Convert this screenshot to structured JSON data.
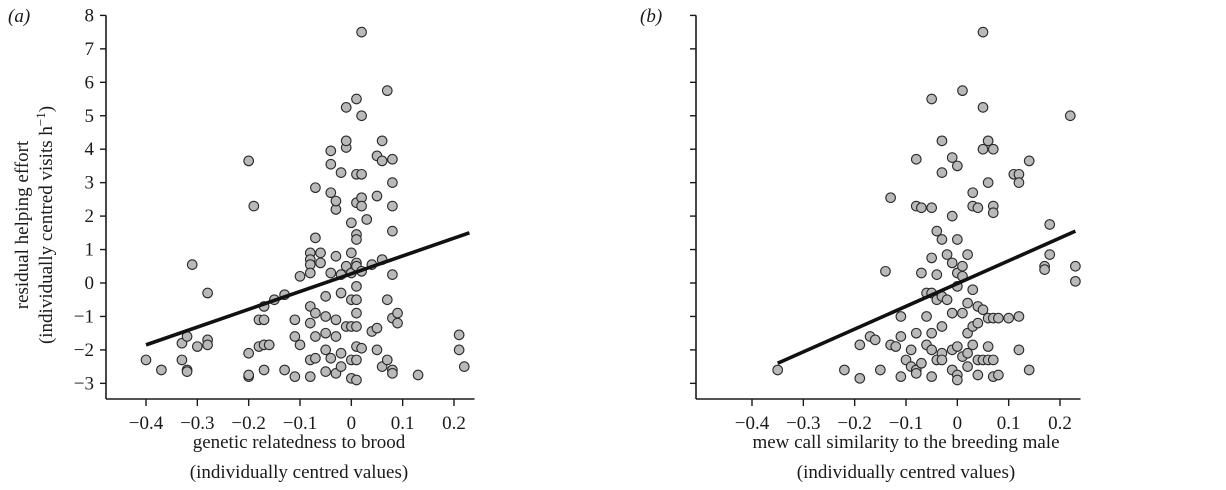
{
  "chart_data": [
    {
      "type": "scatter",
      "panel_label": "(a)",
      "xlabel": "genetic relatedness to brood",
      "xlabel2": "(individually centred values)",
      "ylabel": "residual helping effort",
      "ylabel2": "(individually centred visits h",
      "ylabel2_sup": "−1",
      "ylabel2_end": ")",
      "xlim": [
        -0.45,
        0.24
      ],
      "ylim": [
        -3.4,
        8.0
      ],
      "xticks": [
        -0.4,
        -0.3,
        -0.2,
        -0.1,
        0,
        0.1,
        0.2
      ],
      "xtick_labels": [
        "−0.4",
        "−0.3",
        "−0.2",
        "−0.1",
        "0",
        "0.1",
        "0.2"
      ],
      "yticks": [
        -3,
        -2,
        -1,
        0,
        1,
        2,
        3,
        4,
        5,
        6,
        7,
        8
      ],
      "ytick_labels": [
        "−3",
        "−2",
        "−1",
        "0",
        "1",
        "2",
        "3",
        "4",
        "5",
        "6",
        "7",
        "8"
      ],
      "fit_line": [
        [
          -0.4,
          -1.85
        ],
        [
          0.23,
          1.5
        ]
      ],
      "points": [
        [
          -0.4,
          -2.3
        ],
        [
          -0.37,
          -2.6
        ],
        [
          -0.33,
          -2.3
        ],
        [
          -0.33,
          -1.8
        ],
        [
          -0.32,
          -1.6
        ],
        [
          -0.32,
          -2.6
        ],
        [
          -0.32,
          -2.65
        ],
        [
          -0.31,
          0.55
        ],
        [
          -0.3,
          -1.9
        ],
        [
          -0.28,
          -1.7
        ],
        [
          -0.28,
          -1.85
        ],
        [
          -0.28,
          -0.3
        ],
        [
          -0.2,
          3.65
        ],
        [
          -0.2,
          -2.8
        ],
        [
          -0.2,
          -2.75
        ],
        [
          -0.2,
          -2.1
        ],
        [
          -0.19,
          2.3
        ],
        [
          -0.18,
          -1.1
        ],
        [
          -0.18,
          -1.9
        ],
        [
          -0.17,
          -2.6
        ],
        [
          -0.17,
          -1.85
        ],
        [
          -0.17,
          -1.1
        ],
        [
          -0.17,
          -0.7
        ],
        [
          -0.16,
          -1.85
        ],
        [
          -0.15,
          -0.5
        ],
        [
          -0.13,
          -0.35
        ],
        [
          -0.13,
          -2.6
        ],
        [
          -0.11,
          -2.8
        ],
        [
          -0.11,
          -1.6
        ],
        [
          -0.11,
          -1.1
        ],
        [
          -0.1,
          0.2
        ],
        [
          -0.1,
          -1.85
        ],
        [
          -0.08,
          -2.3
        ],
        [
          -0.08,
          -2.8
        ],
        [
          -0.08,
          0.9
        ],
        [
          -0.08,
          0.7
        ],
        [
          -0.08,
          0.55
        ],
        [
          -0.08,
          0.3
        ],
        [
          -0.08,
          -0.7
        ],
        [
          -0.08,
          -1.2
        ],
        [
          -0.07,
          1.35
        ],
        [
          -0.07,
          2.85
        ],
        [
          -0.07,
          -2.25
        ],
        [
          -0.07,
          -1.6
        ],
        [
          -0.07,
          -0.9
        ],
        [
          -0.06,
          0.9
        ],
        [
          -0.06,
          0.6
        ],
        [
          -0.05,
          -1.0
        ],
        [
          -0.05,
          -1.5
        ],
        [
          -0.05,
          -2.0
        ],
        [
          -0.05,
          -2.65
        ],
        [
          -0.05,
          -0.4
        ],
        [
          -0.04,
          0.3
        ],
        [
          -0.04,
          2.7
        ],
        [
          -0.04,
          3.55
        ],
        [
          -0.04,
          3.95
        ],
        [
          -0.04,
          -2.25
        ],
        [
          -0.03,
          0.8
        ],
        [
          -0.03,
          -1.1
        ],
        [
          -0.03,
          -1.6
        ],
        [
          -0.03,
          -2.7
        ],
        [
          -0.03,
          2.2
        ],
        [
          -0.03,
          2.45
        ],
        [
          -0.02,
          0.25
        ],
        [
          -0.02,
          -0.3
        ],
        [
          -0.02,
          -2.1
        ],
        [
          -0.02,
          -2.5
        ],
        [
          -0.02,
          3.3
        ],
        [
          -0.01,
          4.05
        ],
        [
          -0.01,
          4.25
        ],
        [
          -0.01,
          5.25
        ],
        [
          -0.01,
          -1.3
        ],
        [
          -0.01,
          0.5
        ],
        [
          0,
          -2.85
        ],
        [
          0,
          -2.3
        ],
        [
          0,
          0.3
        ],
        [
          0,
          -1.3
        ],
        [
          0,
          1.8
        ],
        [
          0,
          0.9
        ],
        [
          0,
          -0.5
        ],
        [
          0.01,
          5.5
        ],
        [
          0.01,
          3.25
        ],
        [
          0.01,
          2.4
        ],
        [
          0.01,
          1.45
        ],
        [
          0.01,
          1.3
        ],
        [
          0.01,
          0.6
        ],
        [
          0.01,
          0.5
        ],
        [
          0.01,
          -0.1
        ],
        [
          0.01,
          -0.5
        ],
        [
          0.01,
          -0.9
        ],
        [
          0.01,
          -1.3
        ],
        [
          0.01,
          -1.9
        ],
        [
          0.01,
          -2.3
        ],
        [
          0.01,
          -2.9
        ],
        [
          0.02,
          7.5
        ],
        [
          0.02,
          5.0
        ],
        [
          0.02,
          3.25
        ],
        [
          0.02,
          2.55
        ],
        [
          0.02,
          2.3
        ],
        [
          0.02,
          0.35
        ],
        [
          0.02,
          -1.95
        ],
        [
          0.03,
          1.9
        ],
        [
          0.04,
          0.55
        ],
        [
          0.04,
          -1.45
        ],
        [
          0.05,
          3.8
        ],
        [
          0.05,
          2.6
        ],
        [
          0.05,
          -1.35
        ],
        [
          0.05,
          -2.0
        ],
        [
          0.06,
          4.25
        ],
        [
          0.06,
          3.65
        ],
        [
          0.06,
          0.7
        ],
        [
          0.06,
          -2.5
        ],
        [
          0.07,
          5.75
        ],
        [
          0.07,
          -0.5
        ],
        [
          0.07,
          -2.3
        ],
        [
          0.08,
          3.7
        ],
        [
          0.08,
          3.0
        ],
        [
          0.08,
          2.3
        ],
        [
          0.08,
          1.55
        ],
        [
          0.08,
          0.25
        ],
        [
          0.08,
          -1.05
        ],
        [
          0.08,
          -2.6
        ],
        [
          0.08,
          -2.7
        ],
        [
          0.09,
          -0.9
        ],
        [
          0.09,
          -1.2
        ],
        [
          0.13,
          -2.75
        ],
        [
          0.21,
          -1.55
        ],
        [
          0.21,
          -2.0
        ],
        [
          0.22,
          -2.5
        ]
      ]
    },
    {
      "type": "scatter",
      "panel_label": "(b)",
      "xlabel": "mew call similarity to the breeding male",
      "xlabel2": "(individually centred values)",
      "xlim": [
        -0.45,
        0.24
      ],
      "ylim": [
        -3.4,
        8.0
      ],
      "xticks": [
        -0.4,
        -0.3,
        -0.2,
        -0.1,
        0,
        0.1,
        0.2
      ],
      "xtick_labels": [
        "−0.4",
        "−0.3",
        "−0.2",
        "−0.1",
        "0",
        "0.1",
        "0.2"
      ],
      "yticks": [
        -3,
        -2,
        -1,
        0,
        1,
        2,
        3,
        4,
        5,
        6,
        7,
        8
      ],
      "fit_line": [
        [
          -0.35,
          -2.4
        ],
        [
          0.23,
          1.55
        ]
      ],
      "points": [
        [
          -0.35,
          -2.6
        ],
        [
          -0.22,
          -2.6
        ],
        [
          -0.19,
          -2.85
        ],
        [
          -0.19,
          -1.85
        ],
        [
          -0.17,
          -1.6
        ],
        [
          -0.16,
          -1.7
        ],
        [
          -0.15,
          -2.6
        ],
        [
          -0.14,
          0.35
        ],
        [
          -0.13,
          2.55
        ],
        [
          -0.13,
          -1.85
        ],
        [
          -0.12,
          -1.9
        ],
        [
          -0.11,
          -1.6
        ],
        [
          -0.11,
          -1.0
        ],
        [
          -0.11,
          -2.8
        ],
        [
          -0.1,
          -2.3
        ],
        [
          -0.09,
          -2.5
        ],
        [
          -0.09,
          -2.0
        ],
        [
          -0.08,
          3.7
        ],
        [
          -0.08,
          2.3
        ],
        [
          -0.08,
          -1.5
        ],
        [
          -0.08,
          -2.6
        ],
        [
          -0.08,
          -2.7
        ],
        [
          -0.07,
          2.25
        ],
        [
          -0.07,
          0.3
        ],
        [
          -0.07,
          -2.4
        ],
        [
          -0.06,
          -1.0
        ],
        [
          -0.06,
          -1.85
        ],
        [
          -0.06,
          -0.3
        ],
        [
          -0.05,
          5.5
        ],
        [
          -0.05,
          2.25
        ],
        [
          -0.05,
          0.75
        ],
        [
          -0.05,
          -0.3
        ],
        [
          -0.05,
          -1.5
        ],
        [
          -0.05,
          -2.0
        ],
        [
          -0.05,
          -2.8
        ],
        [
          -0.04,
          -2.3
        ],
        [
          -0.04,
          0.25
        ],
        [
          -0.04,
          -0.5
        ],
        [
          -0.04,
          1.55
        ],
        [
          -0.03,
          4.25
        ],
        [
          -0.03,
          3.3
        ],
        [
          -0.03,
          1.3
        ],
        [
          -0.03,
          -0.4
        ],
        [
          -0.03,
          -1.3
        ],
        [
          -0.03,
          -2.1
        ],
        [
          -0.03,
          -2.3
        ],
        [
          -0.02,
          -0.5
        ],
        [
          -0.02,
          0.85
        ],
        [
          -0.01,
          3.75
        ],
        [
          -0.01,
          2.0
        ],
        [
          -0.01,
          0.6
        ],
        [
          -0.01,
          -0.9
        ],
        [
          -0.01,
          -2.0
        ],
        [
          -0.01,
          -2.6
        ],
        [
          0,
          3.5
        ],
        [
          0,
          1.3
        ],
        [
          0,
          0.3
        ],
        [
          0,
          -0.1
        ],
        [
          0,
          -1.9
        ],
        [
          0,
          -2.75
        ],
        [
          0,
          -2.9
        ],
        [
          0.01,
          5.75
        ],
        [
          0.01,
          0.5
        ],
        [
          0.01,
          0.2
        ],
        [
          0.01,
          -0.9
        ],
        [
          0.01,
          -2.2
        ],
        [
          0.02,
          0.85
        ],
        [
          0.02,
          -0.6
        ],
        [
          0.02,
          -1.5
        ],
        [
          0.02,
          -2.1
        ],
        [
          0.02,
          -2.5
        ],
        [
          0.03,
          2.7
        ],
        [
          0.03,
          2.3
        ],
        [
          0.03,
          -0.2
        ],
        [
          0.03,
          -1.3
        ],
        [
          0.03,
          -1.85
        ],
        [
          0.04,
          2.25
        ],
        [
          0.04,
          -0.7
        ],
        [
          0.04,
          -1.2
        ],
        [
          0.04,
          -2.3
        ],
        [
          0.04,
          -2.75
        ],
        [
          0.05,
          7.5
        ],
        [
          0.05,
          5.25
        ],
        [
          0.05,
          4.0
        ],
        [
          0.05,
          -0.8
        ],
        [
          0.05,
          -2.3
        ],
        [
          0.06,
          4.25
        ],
        [
          0.06,
          3.0
        ],
        [
          0.06,
          -1.05
        ],
        [
          0.06,
          -1.9
        ],
        [
          0.06,
          -2.3
        ],
        [
          0.07,
          4.0
        ],
        [
          0.07,
          2.3
        ],
        [
          0.07,
          2.1
        ],
        [
          0.07,
          -1.05
        ],
        [
          0.07,
          -2.8
        ],
        [
          0.07,
          -2.3
        ],
        [
          0.08,
          -1.05
        ],
        [
          0.08,
          -2.75
        ],
        [
          0.1,
          -1.05
        ],
        [
          0.11,
          3.25
        ],
        [
          0.12,
          3.25
        ],
        [
          0.12,
          3.0
        ],
        [
          0.12,
          -1.0
        ],
        [
          0.12,
          -2.0
        ],
        [
          0.14,
          3.65
        ],
        [
          0.14,
          -2.6
        ],
        [
          0.17,
          0.5
        ],
        [
          0.17,
          0.4
        ],
        [
          0.18,
          1.75
        ],
        [
          0.18,
          0.85
        ],
        [
          0.22,
          5.0
        ],
        [
          0.23,
          0.5
        ],
        [
          0.23,
          0.05
        ]
      ]
    }
  ]
}
